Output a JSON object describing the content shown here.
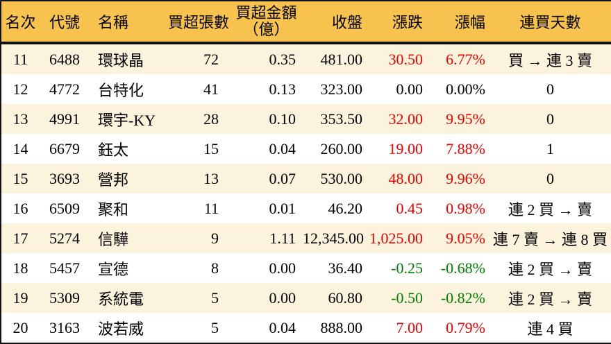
{
  "table": {
    "columns": {
      "rank": "名次",
      "code": "代號",
      "name": "名稱",
      "volume": "買超張數",
      "amount_line1": "買超金額",
      "amount_line2": "（億）",
      "close": "收盤",
      "change": "漲跌",
      "change_pct": "漲幅",
      "streak": "連買天數"
    },
    "rows": [
      {
        "rank": "11",
        "code": "6488",
        "name": "環球晶",
        "volume": "72",
        "amount": "0.35",
        "close": "481.00",
        "change": "30.50",
        "change_pct": "6.77%",
        "streak": "買 → 連 3 賣",
        "trend": "up"
      },
      {
        "rank": "12",
        "code": "4772",
        "name": "台特化",
        "volume": "41",
        "amount": "0.13",
        "close": "323.00",
        "change": "0.00",
        "change_pct": "0.00%",
        "streak": "0",
        "trend": "flat"
      },
      {
        "rank": "13",
        "code": "4991",
        "name": "環宇-KY",
        "volume": "28",
        "amount": "0.10",
        "close": "353.50",
        "change": "32.00",
        "change_pct": "9.95%",
        "streak": "0",
        "trend": "up"
      },
      {
        "rank": "14",
        "code": "6679",
        "name": "鈺太",
        "volume": "15",
        "amount": "0.04",
        "close": "260.00",
        "change": "19.00",
        "change_pct": "7.88%",
        "streak": "1",
        "trend": "up"
      },
      {
        "rank": "15",
        "code": "3693",
        "name": "營邦",
        "volume": "13",
        "amount": "0.07",
        "close": "530.00",
        "change": "48.00",
        "change_pct": "9.96%",
        "streak": "0",
        "trend": "up"
      },
      {
        "rank": "16",
        "code": "6509",
        "name": "聚和",
        "volume": "11",
        "amount": "0.01",
        "close": "46.20",
        "change": "0.45",
        "change_pct": "0.98%",
        "streak": "連 2 買 → 賣",
        "trend": "up"
      },
      {
        "rank": "17",
        "code": "5274",
        "name": "信驊",
        "volume": "9",
        "amount": "1.11",
        "close": "12,345.00",
        "change": "1,025.00",
        "change_pct": "9.05%",
        "streak": "連 7 賣 → 連 8 買",
        "trend": "up"
      },
      {
        "rank": "18",
        "code": "5457",
        "name": "宣德",
        "volume": "8",
        "amount": "0.00",
        "close": "36.40",
        "change": "-0.25",
        "change_pct": "-0.68%",
        "streak": "連 2 買 → 賣",
        "trend": "down"
      },
      {
        "rank": "19",
        "code": "5309",
        "name": "系統電",
        "volume": "5",
        "amount": "0.00",
        "close": "60.80",
        "change": "-0.50",
        "change_pct": "-0.82%",
        "streak": "連 2 買 → 賣",
        "trend": "down"
      },
      {
        "rank": "20",
        "code": "3163",
        "name": "波若威",
        "volume": "5",
        "amount": "0.04",
        "close": "888.00",
        "change": "7.00",
        "change_pct": "0.79%",
        "streak": "連 4 買",
        "trend": "up"
      }
    ]
  },
  "colors": {
    "header_bg": "#f7c34e",
    "stripe_bg": "#fcf3dc",
    "up": "#ee0000",
    "down": "#007e00",
    "flat": "#000000",
    "border": "#111111"
  }
}
